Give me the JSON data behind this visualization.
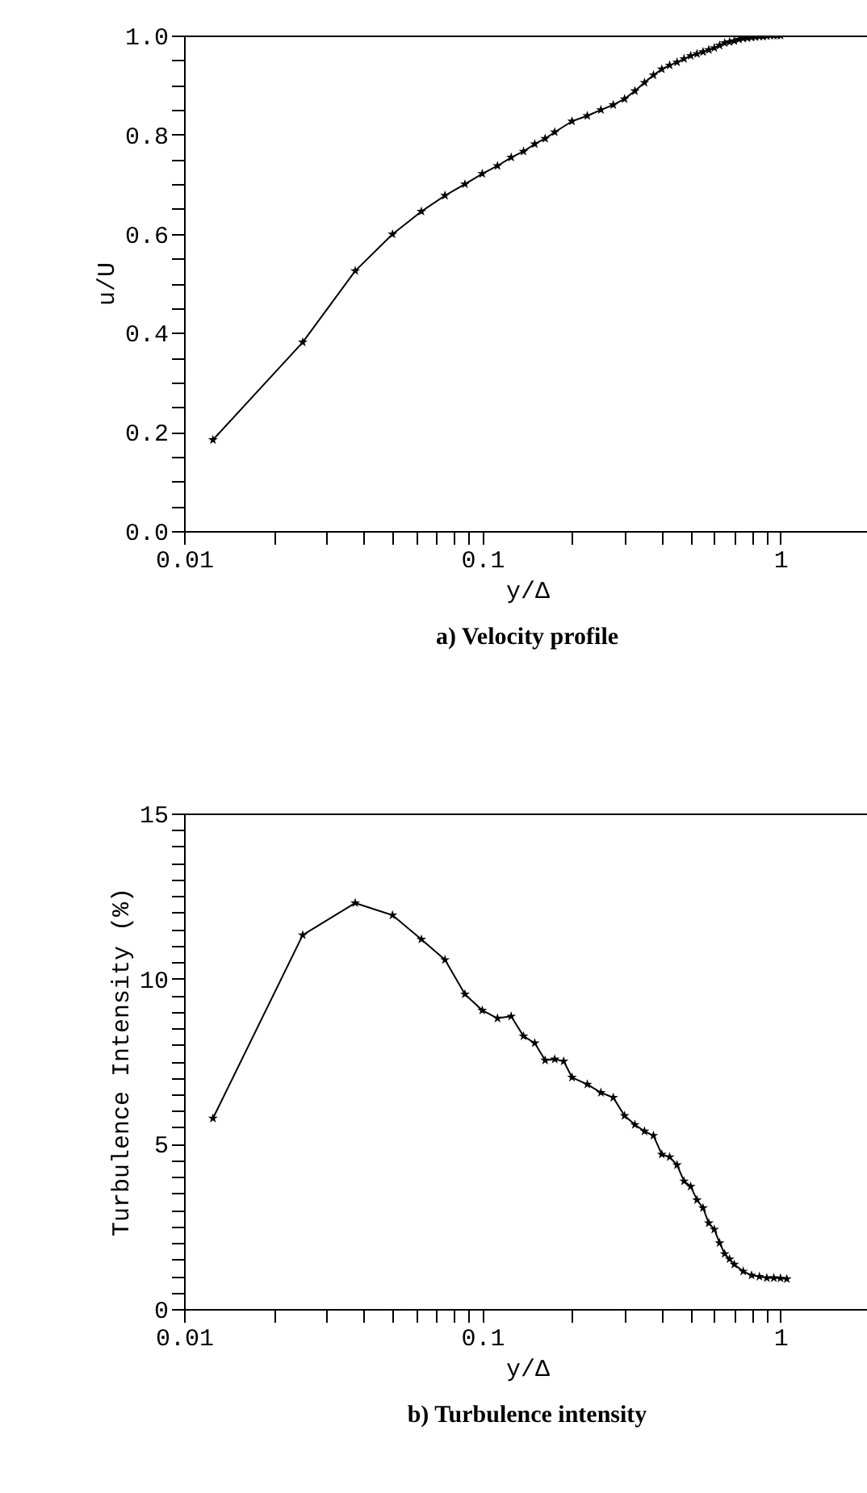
{
  "chart_data": [
    {
      "type": "line",
      "title": "a) Velocity profile",
      "xlabel": "y/Δ",
      "ylabel": "u/U",
      "log": "x",
      "grid": false,
      "marker": "star",
      "line_style": "solid",
      "xlim": [
        0.01,
        2
      ],
      "xticks": [
        0.01,
        {
          "value": 0.02,
          "label": null
        },
        {
          "value": 0.03,
          "label": null
        },
        {
          "value": 0.04,
          "label": null
        },
        {
          "value": 0.05,
          "label": null
        },
        {
          "value": 0.06,
          "label": null
        },
        {
          "value": 0.07,
          "label": null
        },
        {
          "value": 0.08,
          "label": null
        },
        {
          "value": 0.09,
          "label": null
        },
        0.1,
        {
          "value": 0.2,
          "label": null
        },
        {
          "value": 0.3,
          "label": null
        },
        {
          "value": 0.4,
          "label": null
        },
        {
          "value": 0.5,
          "label": null
        },
        {
          "value": 0.6,
          "label": null
        },
        {
          "value": 0.7,
          "label": null
        },
        {
          "value": 0.8,
          "label": null
        },
        {
          "value": 0.9,
          "label": null
        },
        1
      ],
      "ylim": [
        0,
        1
      ],
      "yticks": [
        {
          "value": 0,
          "label": "0.0"
        },
        {
          "value": 0.05,
          "label": null
        },
        {
          "value": 0.1,
          "label": null
        },
        {
          "value": 0.15,
          "label": null
        },
        0.2,
        {
          "value": 0.25,
          "label": null
        },
        {
          "value": 0.3,
          "label": null
        },
        {
          "value": 0.35,
          "label": null
        },
        0.4,
        {
          "value": 0.45,
          "label": null
        },
        {
          "value": 0.5,
          "label": null
        },
        {
          "value": 0.55,
          "label": null
        },
        0.6,
        {
          "value": 0.65,
          "label": null
        },
        {
          "value": 0.7,
          "label": null
        },
        {
          "value": 0.75,
          "label": null
        },
        0.8,
        {
          "value": 0.85,
          "label": null
        },
        {
          "value": 0.9,
          "label": null
        },
        {
          "value": 0.95,
          "label": null
        },
        {
          "value": 1,
          "label": "1.0"
        }
      ],
      "x": [
        0.0125,
        0.025,
        0.0375,
        0.05,
        0.0625,
        0.075,
        0.0875,
        0.1,
        0.1125,
        0.125,
        0.1375,
        0.15,
        0.1625,
        0.175,
        0.2,
        0.225,
        0.25,
        0.275,
        0.3,
        0.325,
        0.35,
        0.375,
        0.4,
        0.425,
        0.45,
        0.475,
        0.5,
        0.525,
        0.55,
        0.575,
        0.6,
        0.625,
        0.65,
        0.675,
        0.7,
        0.725,
        0.75,
        0.775,
        0.8,
        0.825,
        0.85,
        0.875,
        0.9,
        0.925,
        0.95,
        0.975,
        1.0
      ],
      "series": [
        {
          "color": "#000000",
          "values": [
            0.184,
            0.381,
            0.525,
            0.599,
            0.645,
            0.677,
            0.7,
            0.721,
            0.737,
            0.754,
            0.766,
            0.781,
            0.792,
            0.805,
            0.827,
            0.838,
            0.85,
            0.86,
            0.872,
            0.888,
            0.905,
            0.92,
            0.932,
            0.94,
            0.946,
            0.953,
            0.959,
            0.963,
            0.967,
            0.971,
            0.975,
            0.98,
            0.985,
            0.987,
            0.989,
            0.992,
            0.994,
            0.995,
            0.996,
            0.997,
            0.998,
            0.998,
            0.999,
            1.0,
            1.0,
            1.0,
            1.0
          ]
        }
      ]
    },
    {
      "type": "line",
      "title": "b) Turbulence intensity",
      "xlabel": "y/Δ",
      "ylabel": "Turbulence Intensity (%)",
      "log": "x",
      "grid": false,
      "marker": "star",
      "line_style": "solid",
      "xlim": [
        0.01,
        2
      ],
      "xticks": [
        0.01,
        {
          "value": 0.02,
          "label": null
        },
        {
          "value": 0.03,
          "label": null
        },
        {
          "value": 0.04,
          "label": null
        },
        {
          "value": 0.05,
          "label": null
        },
        {
          "value": 0.06,
          "label": null
        },
        {
          "value": 0.07,
          "label": null
        },
        {
          "value": 0.08,
          "label": null
        },
        {
          "value": 0.09,
          "label": null
        },
        0.1,
        {
          "value": 0.2,
          "label": null
        },
        {
          "value": 0.3,
          "label": null
        },
        {
          "value": 0.4,
          "label": null
        },
        {
          "value": 0.5,
          "label": null
        },
        {
          "value": 0.6,
          "label": null
        },
        {
          "value": 0.7,
          "label": null
        },
        {
          "value": 0.8,
          "label": null
        },
        {
          "value": 0.9,
          "label": null
        },
        1
      ],
      "ylim": [
        0,
        15
      ],
      "yticks": [
        0,
        {
          "value": 0.5,
          "label": null
        },
        {
          "value": 1,
          "label": null
        },
        {
          "value": 1.5,
          "label": null
        },
        {
          "value": 2,
          "label": null
        },
        {
          "value": 2.5,
          "label": null
        },
        {
          "value": 3,
          "label": null
        },
        {
          "value": 3.5,
          "label": null
        },
        {
          "value": 4,
          "label": null
        },
        {
          "value": 4.5,
          "label": null
        },
        5,
        {
          "value": 5.5,
          "label": null
        },
        {
          "value": 6,
          "label": null
        },
        {
          "value": 6.5,
          "label": null
        },
        {
          "value": 7,
          "label": null
        },
        {
          "value": 7.5,
          "label": null
        },
        {
          "value": 8,
          "label": null
        },
        {
          "value": 8.5,
          "label": null
        },
        {
          "value": 9,
          "label": null
        },
        {
          "value": 9.5,
          "label": null
        },
        10,
        {
          "value": 10.5,
          "label": null
        },
        {
          "value": 11,
          "label": null
        },
        {
          "value": 11.5,
          "label": null
        },
        {
          "value": 12,
          "label": null
        },
        {
          "value": 12.5,
          "label": null
        },
        {
          "value": 13,
          "label": null
        },
        {
          "value": 13.5,
          "label": null
        },
        {
          "value": 14,
          "label": null
        },
        {
          "value": 14.5,
          "label": null
        },
        15
      ],
      "x": [
        0.0125,
        0.025,
        0.0375,
        0.05,
        0.0625,
        0.075,
        0.0875,
        0.1,
        0.1125,
        0.125,
        0.1375,
        0.15,
        0.1625,
        0.175,
        0.1875,
        0.2,
        0.225,
        0.25,
        0.275,
        0.3,
        0.325,
        0.35,
        0.375,
        0.4,
        0.425,
        0.45,
        0.475,
        0.5,
        0.525,
        0.55,
        0.575,
        0.6,
        0.625,
        0.65,
        0.675,
        0.7,
        0.75,
        0.8,
        0.85,
        0.9,
        0.95,
        1.0,
        1.05
      ],
      "series": [
        {
          "color": "#000000",
          "values": [
            5.77,
            11.32,
            12.29,
            11.92,
            11.19,
            10.57,
            9.53,
            9.04,
            8.8,
            8.86,
            8.26,
            8.05,
            7.53,
            7.56,
            7.5,
            7.01,
            6.8,
            6.55,
            6.4,
            5.85,
            5.58,
            5.38,
            5.25,
            4.68,
            4.6,
            4.36,
            3.87,
            3.71,
            3.3,
            3.06,
            2.6,
            2.41,
            2.0,
            1.67,
            1.51,
            1.35,
            1.14,
            1.02,
            0.98,
            0.94,
            0.94,
            0.93,
            0.91
          ]
        }
      ]
    }
  ]
}
